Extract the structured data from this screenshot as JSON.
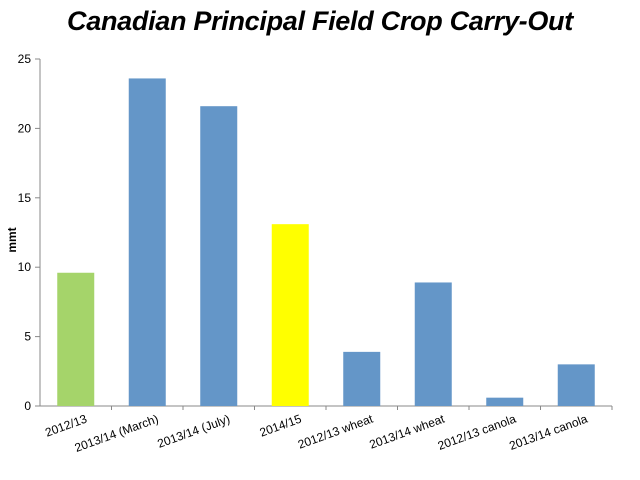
{
  "chart_data": {
    "type": "bar",
    "title": "Canadian Principal Field Crop Carry-Out",
    "xlabel": "",
    "ylabel": "mmt",
    "ylim": [
      0,
      25
    ],
    "yticks": [
      0,
      5,
      10,
      15,
      20,
      25
    ],
    "grid": false,
    "categories": [
      "2012/13",
      "2013/14 (March)",
      "2013/14 (July)",
      "2014/15",
      "2012/13 wheat",
      "2013/14 wheat",
      "2012/13 canola",
      "2013/14 canola"
    ],
    "values": [
      9.6,
      23.6,
      21.6,
      13.1,
      3.9,
      8.9,
      0.6,
      3.0
    ],
    "colors": [
      "#a5d46a",
      "#6496c8",
      "#6496c8",
      "#ffff00",
      "#6496c8",
      "#6496c8",
      "#6496c8",
      "#6496c8"
    ]
  }
}
